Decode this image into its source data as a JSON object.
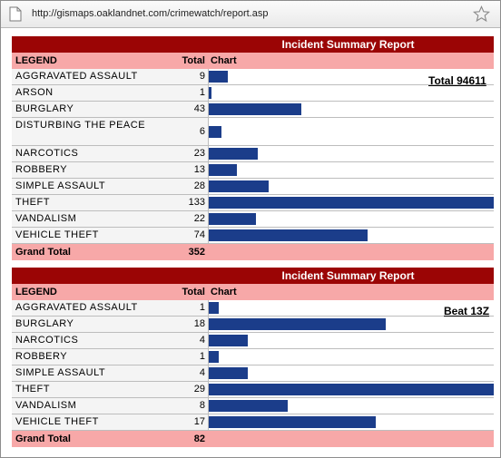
{
  "browser": {
    "url": "http://gismaps.oaklandnet.com/crimewatch/report.asp"
  },
  "reports": [
    {
      "title": "Incident Summary Report",
      "columns": {
        "legend": "LEGEND",
        "total": "Total",
        "chart": "Chart"
      },
      "link_label": "Total 94611",
      "rows": [
        {
          "label": "AGGRAVATED ASSAULT",
          "total": "9",
          "value": 9
        },
        {
          "label": "ARSON",
          "total": "1",
          "value": 1
        },
        {
          "label": "BURGLARY",
          "total": "43",
          "value": 43
        },
        {
          "label": "DISTURBING THE PEACE",
          "total": "6",
          "value": 6,
          "tall": true
        },
        {
          "label": "NARCOTICS",
          "total": "23",
          "value": 23
        },
        {
          "label": "ROBBERY",
          "total": "13",
          "value": 13
        },
        {
          "label": "SIMPLE ASSAULT",
          "total": "28",
          "value": 28
        },
        {
          "label": "THEFT",
          "total": "133",
          "value": 133
        },
        {
          "label": "VANDALISM",
          "total": "22",
          "value": 22
        },
        {
          "label": "VEHICLE THEFT",
          "total": "74",
          "value": 74
        }
      ],
      "grand_total_label": "Grand Total",
      "grand_total": "352"
    },
    {
      "title": "Incident Summary Report",
      "columns": {
        "legend": "LEGEND",
        "total": "Total",
        "chart": "Chart"
      },
      "link_label": "Beat 13Z",
      "rows": [
        {
          "label": "AGGRAVATED ASSAULT",
          "total": "1",
          "value": 1
        },
        {
          "label": "BURGLARY",
          "total": "18",
          "value": 18
        },
        {
          "label": "NARCOTICS",
          "total": "4",
          "value": 4
        },
        {
          "label": "ROBBERY",
          "total": "1",
          "value": 1
        },
        {
          "label": "SIMPLE ASSAULT",
          "total": "4",
          "value": 4
        },
        {
          "label": "THEFT",
          "total": "29",
          "value": 29
        },
        {
          "label": "VANDALISM",
          "total": "8",
          "value": 8
        },
        {
          "label": "VEHICLE THEFT",
          "total": "17",
          "value": 17
        }
      ],
      "grand_total_label": "Grand Total",
      "grand_total": "82"
    }
  ],
  "colors": {
    "header_bg": "#9b0505",
    "subheader_bg": "#f7a8a8",
    "bar": "#1b3d8a"
  }
}
